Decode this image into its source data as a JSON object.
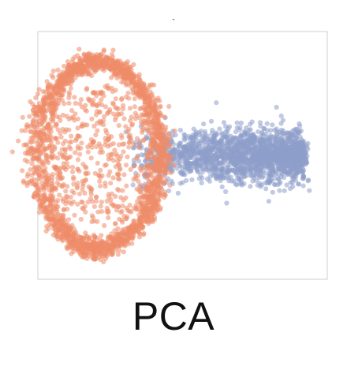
{
  "chart_data": {
    "type": "scatter",
    "title": "-",
    "caption": "PCA",
    "xlabel": "",
    "ylabel": "",
    "xlim": [
      -4.0,
      5.0
    ],
    "ylim": [
      -4.0,
      4.0
    ],
    "grid": false,
    "legend": "none",
    "series": [
      {
        "name": "ring-cluster",
        "color": "#ee8c6a",
        "shape": "ring",
        "center": [
          -2.2,
          0.0
        ],
        "radius_x": 1.75,
        "radius_y": 3.0,
        "ring_band": 0.35,
        "interior_density": 0.18,
        "count": 2600
      },
      {
        "name": "tail-cluster",
        "color": "#8e9fcb",
        "shape": "horizontal-tail",
        "x_start": -1.2,
        "x_end": 4.3,
        "center_y": 0.0,
        "spread_y": 0.45,
        "count": 1900
      }
    ]
  },
  "caption_text": "PCA"
}
